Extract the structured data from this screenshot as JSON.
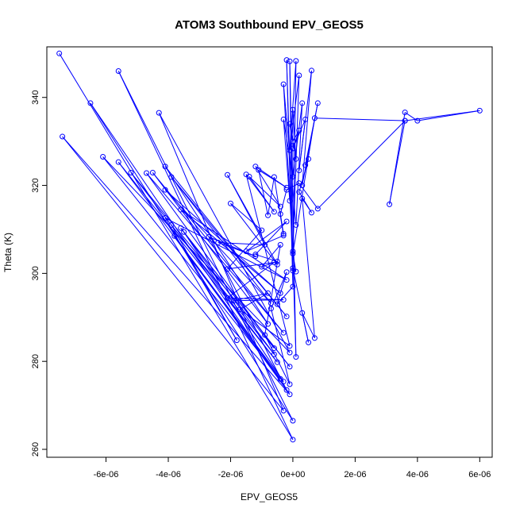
{
  "chart_data": {
    "type": "scatter",
    "title": "ATOM3 Southbound EPV_GEOS5",
    "xlabel": "EPV_GEOS5",
    "ylabel": "Theta (K)",
    "xlim": [
      -7.9e-06,
      6.4e-06
    ],
    "ylim": [
      258.2,
      351.5
    ],
    "xticks": [
      -6e-06,
      -4e-06,
      -2e-06,
      0,
      2e-06,
      4e-06,
      6e-06
    ],
    "xtick_labels": [
      "-6e-06",
      "-4e-06",
      "-2e-06",
      "0e+00",
      "2e-06",
      "4e-06",
      "6e-06"
    ],
    "yticks": [
      260,
      280,
      300,
      320,
      340
    ],
    "ytick_labels": [
      "260",
      "280",
      "300",
      "320",
      "340"
    ],
    "grid": false,
    "line_style": "points connected by lines",
    "series": [
      {
        "color": "#0000ff",
        "points": [
          [
            -7.5e-06,
            350.0
          ],
          [
            0.0,
            262.2
          ],
          [
            -5.6e-06,
            346.0
          ],
          [
            0.0,
            266.5
          ],
          [
            -6.5e-06,
            338.7
          ],
          [
            -1e-07,
            272.5
          ],
          [
            -7.4e-06,
            331.1
          ],
          [
            -3e-07,
            268.8
          ],
          [
            -4.3e-06,
            336.5
          ],
          [
            -1e-07,
            282.0
          ],
          [
            -6.1e-06,
            326.5
          ],
          [
            -4e-07,
            276.0
          ],
          [
            -5.6e-06,
            325.3
          ],
          [
            -5e-07,
            279.8
          ],
          [
            -5.2e-06,
            322.9
          ],
          [
            -6e-07,
            283.0
          ],
          [
            -4.7e-06,
            322.8
          ],
          [
            -3e-07,
            286.5
          ],
          [
            -4.5e-06,
            322.9
          ],
          [
            -8e-07,
            288.5
          ],
          [
            -4.1e-06,
            324.3
          ],
          [
            -2e-07,
            290.2
          ],
          [
            -3.9e-06,
            321.9
          ],
          [
            -7e-07,
            293.2
          ],
          [
            -4.1e-06,
            319.0
          ],
          [
            -4e-07,
            295.5
          ],
          [
            -3.6e-06,
            314.5
          ],
          [
            -2e-07,
            298.5
          ],
          [
            -4.1e-06,
            312.6
          ],
          [
            -1.8e-06,
            284.8
          ],
          [
            -3.9e-06,
            311.0
          ],
          [
            -6e-07,
            281.6
          ],
          [
            -3.6e-06,
            310.3
          ],
          [
            -1e-07,
            278.8
          ],
          [
            -3.5e-06,
            309.4
          ],
          [
            -3e-07,
            275.4
          ],
          [
            -3.8e-06,
            308.5
          ],
          [
            -2e-07,
            273.5
          ],
          [
            -2.7e-06,
            308.3
          ],
          [
            -1.2e-06,
            303.9
          ],
          [
            -2.4e-06,
            307.0
          ],
          [
            -9e-07,
            306.5
          ],
          [
            -2.1e-06,
            322.4
          ],
          [
            -5e-07,
            302.0
          ],
          [
            -2e-06,
            315.9
          ],
          [
            -1e-06,
            309.8
          ],
          [
            -2.1e-06,
            301.0
          ],
          [
            -6e-07,
            302.5
          ],
          [
            -2.1e-06,
            294.4
          ],
          [
            -3e-07,
            294.0
          ],
          [
            -1.9e-06,
            293.8
          ],
          [
            -8e-07,
            295.5
          ],
          [
            -1.7e-06,
            291.8
          ],
          [
            -1e-07,
            283.5
          ],
          [
            -1.5e-06,
            322.5
          ],
          [
            -6e-07,
            314.0
          ],
          [
            -1.4e-06,
            322.0
          ],
          [
            -4e-07,
            315.2
          ],
          [
            -1.2e-06,
            324.3
          ],
          [
            -2e-07,
            319.5
          ],
          [
            -1.1e-06,
            323.5
          ],
          [
            -8e-07,
            313.2
          ],
          [
            -6e-07,
            321.9
          ],
          [
            -3e-07,
            308.6
          ],
          [
            -1.5e-06,
            305.0
          ],
          [
            -2e-07,
            311.8
          ],
          [
            -1.2e-06,
            304.3
          ],
          [
            -5e-07,
            302.7
          ],
          [
            -1e-06,
            301.5
          ],
          [
            -4e-07,
            306.5
          ],
          [
            -9e-07,
            286.0
          ],
          [
            -1e-07,
            274.8
          ],
          [
            -7e-07,
            292.0
          ],
          [
            -2e-07,
            300.3
          ],
          [
            -5e-07,
            293.0
          ],
          [
            0.0,
            297.0
          ],
          [
            -2e-07,
            348.5
          ],
          [
            1e-07,
            281.0
          ],
          [
            -1e-07,
            348.2
          ],
          [
            0.0,
            300.6
          ],
          [
            1e-07,
            348.3
          ],
          [
            -1e-07,
            328.0
          ],
          [
            2e-07,
            345.0
          ],
          [
            0.0,
            305.0
          ],
          [
            -3e-07,
            343.0
          ],
          [
            1e-07,
            311.0
          ],
          [
            3e-07,
            338.7
          ],
          [
            -1e-07,
            316.5
          ],
          [
            -3e-07,
            335.0
          ],
          [
            0.0,
            322.0
          ],
          [
            0.0,
            337.2
          ],
          [
            1e-07,
            326.0
          ],
          [
            -1e-07,
            334.0
          ],
          [
            0.0,
            330.0
          ],
          [
            2e-07,
            332.5
          ],
          [
            0.0,
            328.4
          ],
          [
            4e-07,
            335.0
          ],
          [
            2e-07,
            323.4
          ],
          [
            6e-07,
            346.1
          ],
          [
            3e-07,
            320.0
          ],
          [
            8e-07,
            338.7
          ],
          [
            4e-07,
            324.6
          ],
          [
            5e-07,
            326.0
          ],
          [
            2e-07,
            318.5
          ],
          [
            6e-07,
            313.8
          ],
          [
            3e-07,
            317.0
          ],
          [
            7e-07,
            285.3
          ],
          [
            3e-07,
            291.0
          ],
          [
            5e-07,
            284.3
          ],
          [
            0.0,
            301.2
          ],
          [
            1e-07,
            300.4
          ],
          [
            0.0,
            304.5
          ],
          [
            7e-07,
            335.3
          ],
          [
            3.6e-06,
            334.7
          ],
          [
            6e-06,
            337.0
          ],
          [
            4e-06,
            334.7
          ],
          [
            3.6e-06,
            336.6
          ],
          [
            3.1e-06,
            315.7
          ],
          [
            3.6e-06,
            334.7
          ],
          [
            8e-07,
            314.7
          ],
          [
            2e-07,
            320.5
          ],
          [
            -2e-07,
            319.0
          ],
          [
            -4e-07,
            313.5
          ],
          [
            -3e-07,
            309.0
          ]
        ]
      }
    ]
  }
}
